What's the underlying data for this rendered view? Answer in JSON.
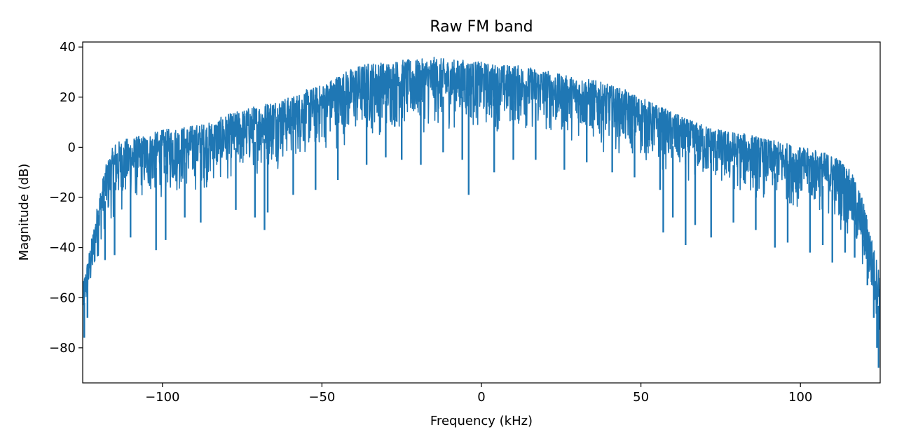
{
  "chart_data": {
    "type": "line",
    "title": "Raw FM band",
    "xlabel": "Frequency (kHz)",
    "ylabel": "Magnitude (dB)",
    "xlim": [
      -125,
      125
    ],
    "ylim": [
      -94,
      42
    ],
    "xticks": [
      -100,
      -50,
      0,
      50,
      100
    ],
    "xtick_labels": [
      "−100",
      "−50",
      "0",
      "50",
      "100"
    ],
    "yticks": [
      -80,
      -60,
      -40,
      -20,
      0,
      20,
      40
    ],
    "ytick_labels": [
      "−80",
      "−60",
      "−40",
      "−20",
      "0",
      "20",
      "40"
    ],
    "grid": false,
    "series": [
      {
        "color": "#1f77b4",
        "upper_envelope": {
          "x": [
            -125,
            -122,
            -120,
            -118,
            -115,
            -110,
            -105,
            -100,
            -95,
            -90,
            -85,
            -80,
            -75,
            -70,
            -65,
            -60,
            -55,
            -50,
            -45,
            -40,
            -35,
            -30,
            -25,
            -20,
            -15,
            -10,
            -5,
            0,
            5,
            10,
            15,
            20,
            25,
            30,
            35,
            40,
            45,
            50,
            55,
            60,
            65,
            70,
            75,
            80,
            85,
            90,
            95,
            100,
            105,
            110,
            113,
            116,
            119,
            121,
            123,
            125
          ],
          "y": [
            -55,
            -35,
            -20,
            -8,
            2,
            4,
            5,
            7,
            8,
            9,
            10,
            13,
            15,
            17,
            19,
            20,
            23,
            25,
            29,
            32,
            34,
            34,
            35,
            35,
            36,
            35,
            35,
            34,
            33,
            33,
            32,
            31,
            29,
            28,
            27,
            25,
            23,
            20,
            17,
            14,
            11,
            9,
            7,
            6,
            5,
            3,
            2,
            0,
            -1,
            -3,
            -5,
            -10,
            -18,
            -28,
            -40,
            -50
          ]
        },
        "lower_envelope": {
          "x": [
            -125,
            -122,
            -120,
            -118,
            -115,
            -110,
            -105,
            -100,
            -95,
            -90,
            -85,
            -80,
            -75,
            -70,
            -65,
            -60,
            -55,
            -50,
            -45,
            -40,
            -35,
            -30,
            -25,
            -20,
            -15,
            -10,
            -5,
            0,
            5,
            10,
            15,
            20,
            25,
            30,
            35,
            40,
            45,
            50,
            55,
            60,
            65,
            70,
            75,
            80,
            85,
            90,
            95,
            100,
            105,
            110,
            113,
            116,
            119,
            121,
            123,
            125
          ],
          "y": [
            -75,
            -60,
            -45,
            -35,
            -30,
            -26,
            -24,
            -22,
            -21,
            -20,
            -18,
            -16,
            -14,
            -12,
            -10,
            -8,
            -6,
            -4,
            -2,
            0,
            2,
            3,
            4,
            4,
            5,
            5,
            5,
            5,
            5,
            4,
            4,
            3,
            2,
            1,
            -1,
            -3,
            -5,
            -8,
            -10,
            -13,
            -15,
            -17,
            -19,
            -21,
            -22,
            -23,
            -24,
            -26,
            -28,
            -31,
            -35,
            -42,
            -52,
            -60,
            -70,
            -82
          ]
        },
        "dips": [
          [
            -124.5,
            -76
          ],
          [
            -123.5,
            -68
          ],
          [
            -118,
            -45
          ],
          [
            -115,
            -43
          ],
          [
            -110,
            -36
          ],
          [
            -102,
            -41
          ],
          [
            -99,
            -37
          ],
          [
            -93,
            -28
          ],
          [
            -88,
            -30
          ],
          [
            -77,
            -25
          ],
          [
            -71,
            -28
          ],
          [
            -68,
            -33
          ],
          [
            -67,
            -26
          ],
          [
            -59,
            -19
          ],
          [
            -52,
            -17
          ],
          [
            -45,
            -13
          ],
          [
            -36,
            -7
          ],
          [
            -30,
            -4
          ],
          [
            -25,
            -5
          ],
          [
            -19,
            -7
          ],
          [
            -12,
            -2
          ],
          [
            -6,
            -5
          ],
          [
            -4,
            -19
          ],
          [
            4,
            -10
          ],
          [
            10,
            -5
          ],
          [
            17,
            -5
          ],
          [
            26,
            -9
          ],
          [
            33,
            -6
          ],
          [
            41,
            -10
          ],
          [
            48,
            -12
          ],
          [
            56,
            -17
          ],
          [
            57,
            -34
          ],
          [
            60,
            -28
          ],
          [
            64,
            -39
          ],
          [
            67,
            -31
          ],
          [
            72,
            -36
          ],
          [
            79,
            -30
          ],
          [
            86,
            -33
          ],
          [
            92,
            -40
          ],
          [
            96,
            -38
          ],
          [
            103,
            -42
          ],
          [
            107,
            -39
          ],
          [
            110,
            -46
          ],
          [
            114,
            -42
          ],
          [
            117,
            -44
          ],
          [
            120,
            -37
          ],
          [
            121,
            -55
          ],
          [
            123,
            -68
          ],
          [
            124,
            -80
          ],
          [
            124.5,
            -88
          ]
        ]
      }
    ]
  }
}
